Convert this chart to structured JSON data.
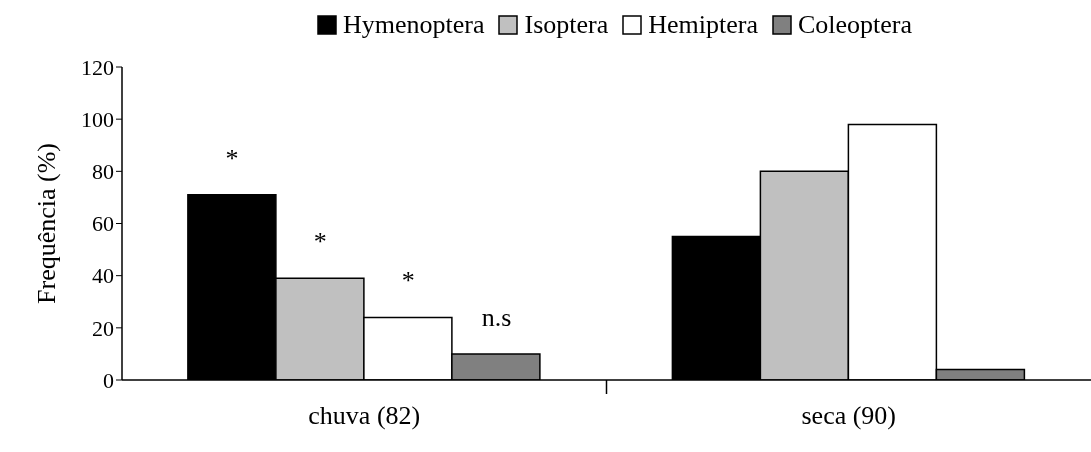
{
  "chart_data": {
    "type": "bar",
    "ylabel": "Frequência (%)",
    "categories": [
      "chuva (82)",
      "seca (90)"
    ],
    "series": [
      {
        "name": "Hymenoptera",
        "color": "#000000",
        "values": [
          71,
          55
        ]
      },
      {
        "name": "Isoptera",
        "color": "#c0c0c0",
        "values": [
          39,
          80
        ]
      },
      {
        "name": "Hemiptera",
        "color": "#ffffff",
        "values": [
          24,
          98
        ]
      },
      {
        "name": "Coleoptera",
        "color": "#808080",
        "values": [
          10,
          4
        ]
      }
    ],
    "ylim": [
      0,
      120
    ],
    "yticks": [
      0,
      20,
      40,
      60,
      80,
      100,
      120
    ],
    "grid": false,
    "legend": "top",
    "annotations": [
      "*",
      "*",
      "*",
      "n.s"
    ]
  }
}
